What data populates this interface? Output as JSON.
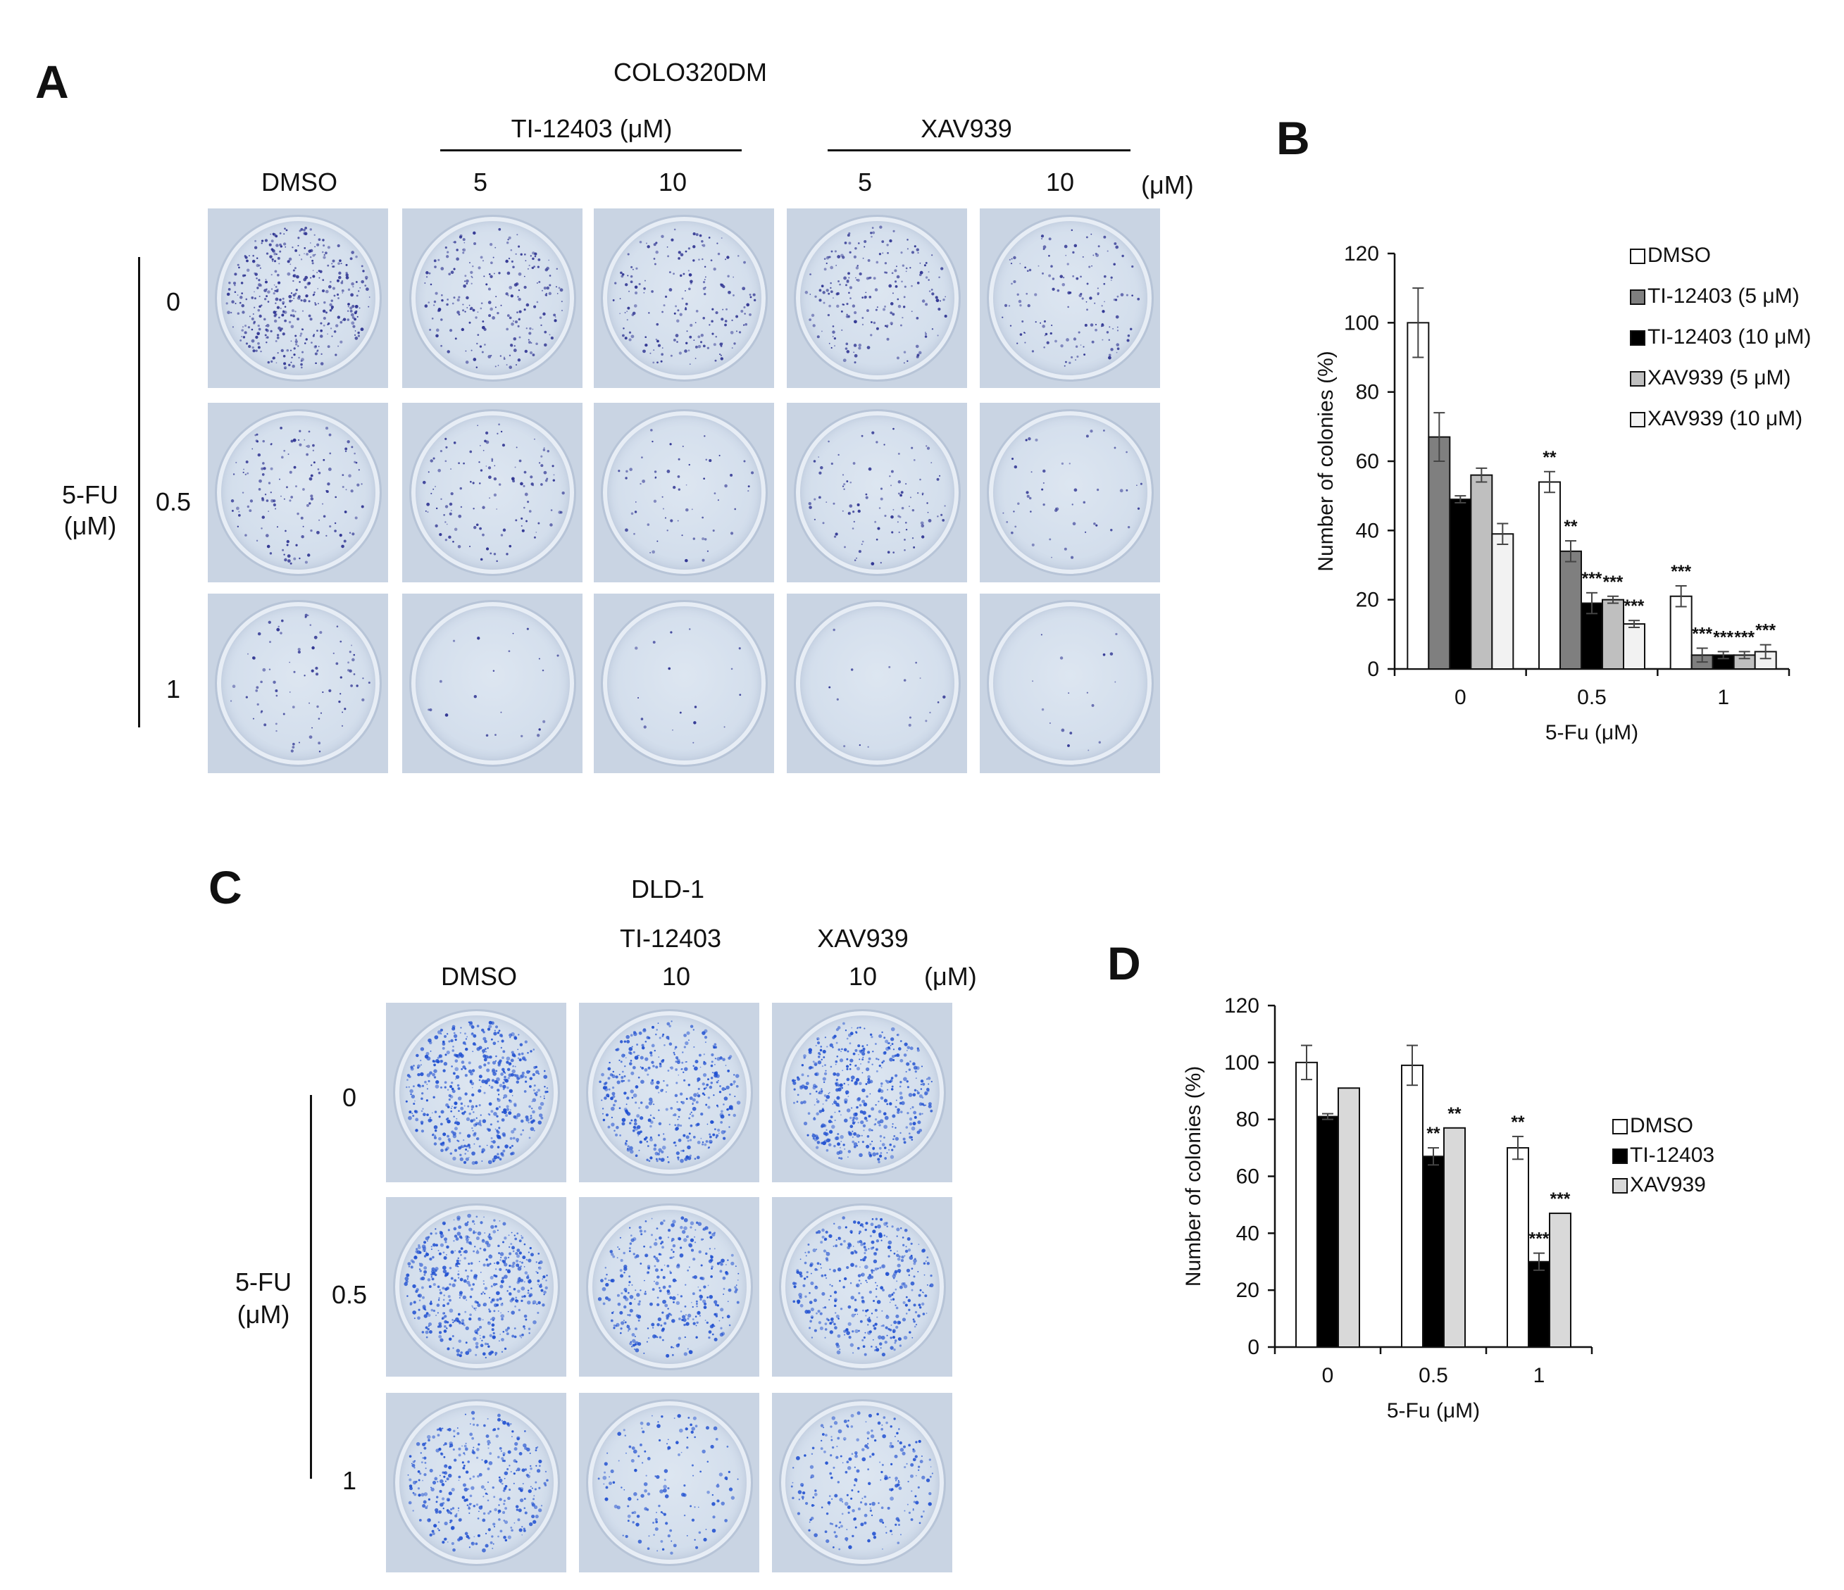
{
  "panelA": {
    "letter": "A",
    "cell_line": "COLO320DM",
    "group1_label": "TI-12403 (μM)",
    "group2_label": "XAV939",
    "col_labels": [
      "DMSO",
      "5",
      "10",
      "5",
      "10"
    ],
    "unit_label": "(μM)",
    "row_labels": [
      "0",
      "0.5",
      "1"
    ],
    "side_label_line1": "5-FU",
    "side_label_line2": "(μM)",
    "colony_color": "#2a2f8f",
    "colony_density": [
      [
        1.0,
        0.55,
        0.45,
        0.5,
        0.35
      ],
      [
        0.35,
        0.3,
        0.15,
        0.25,
        0.12
      ],
      [
        0.2,
        0.05,
        0.04,
        0.04,
        0.04
      ]
    ]
  },
  "panelC": {
    "letter": "C",
    "cell_line": "DLD-1",
    "group1_label": "TI-12403",
    "group2_label": "XAV939",
    "col_labels": [
      "DMSO",
      "10",
      "10"
    ],
    "unit_label": "(μM)",
    "row_labels": [
      "0",
      "0.5",
      "1"
    ],
    "side_label_line1": "5-FU",
    "side_label_line2": "(μM)",
    "colony_color": "#1f4fd0",
    "colony_density": [
      [
        1.0,
        0.8,
        0.9
      ],
      [
        1.0,
        0.68,
        0.77
      ],
      [
        0.7,
        0.3,
        0.47
      ]
    ]
  },
  "panelB": {
    "letter": "B",
    "chart_data": {
      "type": "bar",
      "xlabel": "5-Fu (μM)",
      "ylabel": "Number of colonies  (%)",
      "ylim": [
        0,
        120
      ],
      "yticks": [
        "0",
        "20",
        "40",
        "60",
        "80",
        "100",
        "120"
      ],
      "categories": [
        "0",
        "0.5",
        "1"
      ],
      "legend_position": "top-right",
      "series": [
        {
          "name": "DMSO",
          "color": "#ffffff",
          "values": [
            100,
            54,
            21
          ],
          "errors": [
            10,
            3,
            3
          ],
          "stars": [
            "",
            "**",
            "***"
          ]
        },
        {
          "name": "TI-12403 (5 μM)",
          "color": "#7f7f7f",
          "values": [
            67,
            34,
            4
          ],
          "errors": [
            7,
            3,
            2
          ],
          "stars": [
            "",
            "**",
            "***"
          ]
        },
        {
          "name": "TI-12403 (10 μM)",
          "color": "#000000",
          "values": [
            49,
            19,
            4
          ],
          "errors": [
            1,
            3,
            1
          ],
          "stars": [
            "",
            "***",
            "***"
          ]
        },
        {
          "name": "XAV939 (5 μM)",
          "color": "#bfbfbf",
          "values": [
            56,
            20,
            4
          ],
          "errors": [
            2,
            1,
            1
          ],
          "stars": [
            "",
            "***",
            "***"
          ]
        },
        {
          "name": "XAV939 (10 μM)",
          "color": "#f2f2f2",
          "values": [
            39,
            13,
            5
          ],
          "errors": [
            3,
            1,
            2
          ],
          "stars": [
            "",
            "***",
            "***"
          ]
        }
      ]
    }
  },
  "panelD": {
    "letter": "D",
    "chart_data": {
      "type": "bar",
      "xlabel": "5-Fu (μM)",
      "ylabel": "Number of colonies (%)",
      "ylim": [
        0,
        120
      ],
      "yticks": [
        "0",
        "20",
        "40",
        "60",
        "80",
        "100",
        "120"
      ],
      "categories": [
        "0",
        "0.5",
        "1"
      ],
      "legend_position": "right",
      "series": [
        {
          "name": "DMSO",
          "color": "#ffffff",
          "values": [
            100,
            99,
            70
          ],
          "errors": [
            6,
            7,
            4
          ],
          "stars": [
            "",
            "",
            "**"
          ]
        },
        {
          "name": "TI-12403",
          "color": "#000000",
          "values": [
            81,
            67,
            30
          ],
          "errors": [
            1,
            3,
            3
          ],
          "stars": [
            "",
            "**",
            "***"
          ]
        },
        {
          "name": "XAV939",
          "color": "#d9d9d9",
          "values": [
            91,
            77,
            47
          ],
          "errors": [
            0,
            0,
            0
          ],
          "stars": [
            "",
            "**",
            "***"
          ]
        }
      ]
    }
  }
}
